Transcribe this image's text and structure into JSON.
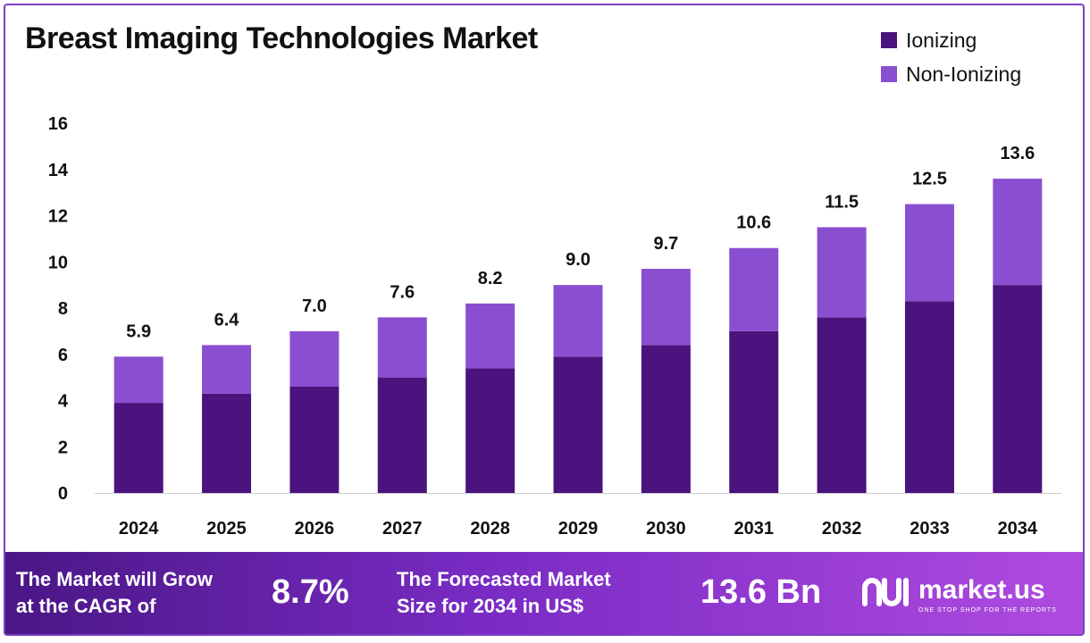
{
  "chart_data": {
    "type": "bar",
    "stacked": true,
    "title": "Breast Imaging Technologies Market",
    "categories": [
      "2024",
      "2025",
      "2026",
      "2027",
      "2028",
      "2029",
      "2030",
      "2031",
      "2032",
      "2033",
      "2034"
    ],
    "series": [
      {
        "name": "Ionizing",
        "color": "#4b137e",
        "values": [
          3.9,
          4.3,
          4.6,
          5.0,
          5.4,
          5.9,
          6.4,
          7.0,
          7.6,
          8.3,
          9.0
        ]
      },
      {
        "name": "Non-Ionizing",
        "color": "#8a4fd0",
        "values": [
          2.0,
          2.1,
          2.4,
          2.6,
          2.8,
          3.1,
          3.3,
          3.6,
          3.9,
          4.2,
          4.6
        ]
      }
    ],
    "totals": [
      "5.9",
      "6.4",
      "7.0",
      "7.6",
      "8.2",
      "9.0",
      "9.7",
      "10.6",
      "11.5",
      "12.5",
      "13.6"
    ],
    "ylim": [
      0,
      16
    ],
    "yticks": [
      0,
      2,
      4,
      6,
      8,
      10,
      12,
      14,
      16
    ],
    "grid": false,
    "legend_position": "top-right"
  },
  "footer": {
    "cagr_label_line1": "The Market will Grow",
    "cagr_label_line2": "at the CAGR of",
    "cagr_value": "8.7%",
    "forecast_label_line1": "The Forecasted Market",
    "forecast_label_line2": "Size for 2034 in US$",
    "forecast_value": "13.6 Bn"
  },
  "brand": {
    "name": "market.us",
    "tagline": "ONE STOP SHOP FOR THE REPORTS"
  }
}
